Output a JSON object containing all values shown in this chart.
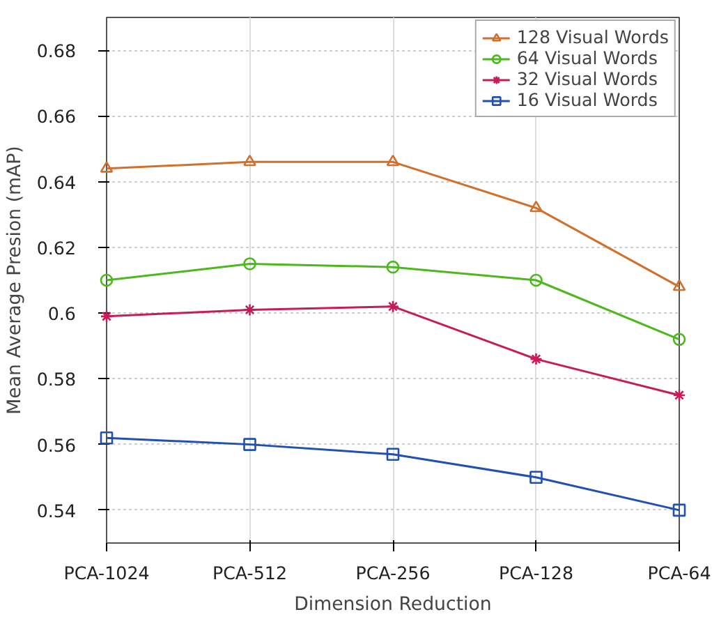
{
  "chart_data": {
    "type": "line",
    "xlabel": "Dimension Reduction",
    "ylabel": "Mean Average Presion (mAP)",
    "categories": [
      "PCA-1024",
      "PCA-512",
      "PCA-256",
      "PCA-128",
      "PCA-64"
    ],
    "ylim": [
      0.53,
      0.69
    ],
    "yticks": [
      0.54,
      0.56,
      0.58,
      {
        "value": 0.6,
        "label": "0.6"
      },
      0.62,
      0.64,
      0.66,
      0.68
    ],
    "grid": true,
    "legend": "top right",
    "line_style": "solid",
    "series": [
      {
        "name": "128 Visual Words",
        "color": "#d0702c",
        "marker": "triangle",
        "values": [
          0.644,
          0.646,
          0.646,
          0.632,
          0.608
        ]
      },
      {
        "name": "64 Visual Words",
        "color": "#4cb81c",
        "marker": "circle",
        "values": [
          0.61,
          0.615,
          0.614,
          0.61,
          0.592
        ]
      },
      {
        "name": "32 Visual Words",
        "color": "#c81c5a",
        "marker": "cross",
        "values": [
          0.599,
          0.601,
          0.602,
          0.586,
          0.575
        ]
      },
      {
        "name": "16 Visual Words",
        "color": "#2050b4",
        "marker": "square",
        "values": [
          0.562,
          0.56,
          0.557,
          0.55,
          0.54
        ]
      }
    ]
  }
}
